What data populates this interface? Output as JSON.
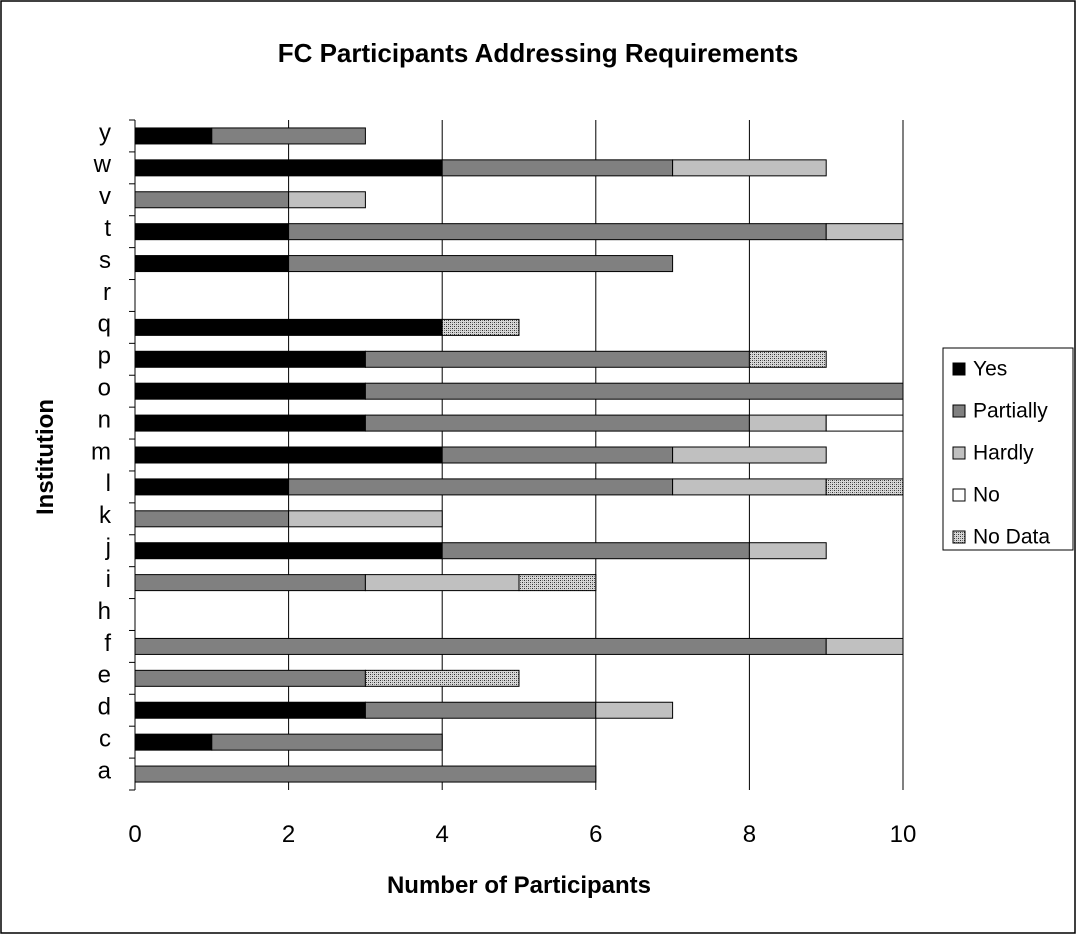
{
  "chart_data": {
    "type": "bar",
    "orientation": "horizontal",
    "stacked": true,
    "title": "FC Participants Addressing Requirements",
    "xlabel": "Number of Participants",
    "ylabel": "Institution",
    "xlim": [
      0,
      10
    ],
    "x_ticks": [
      "0",
      "2",
      "4",
      "6",
      "8",
      "10"
    ],
    "grid": "vertical",
    "legend_position": "right",
    "categories": [
      "y",
      "w",
      "v",
      "t",
      "s",
      "r",
      "q",
      "p",
      "o",
      "n",
      "m",
      "l",
      "k",
      "j",
      "i",
      "h",
      "f",
      "e",
      "d",
      "c",
      "a"
    ],
    "series": [
      {
        "name": "Yes",
        "color": "#000000",
        "pattern": "solid",
        "values": [
          1,
          4,
          0,
          2,
          2,
          0,
          4,
          3,
          3,
          3,
          4,
          2,
          0,
          4,
          0,
          0,
          0,
          0,
          3,
          1,
          0
        ]
      },
      {
        "name": "Partially",
        "color": "#808080",
        "pattern": "solid",
        "values": [
          2,
          3,
          2,
          7,
          5,
          0,
          0,
          5,
          7,
          5,
          3,
          5,
          2,
          4,
          3,
          0,
          9,
          3,
          3,
          3,
          6
        ]
      },
      {
        "name": "Hardly",
        "color": "#c0c0c0",
        "pattern": "solid",
        "values": [
          0,
          2,
          1,
          1,
          0,
          0,
          0,
          0,
          0,
          1,
          2,
          2,
          2,
          1,
          2,
          0,
          1,
          0,
          1,
          0,
          0
        ]
      },
      {
        "name": "No",
        "color": "#ffffff",
        "pattern": "solid",
        "values": [
          0,
          0,
          0,
          0,
          0,
          0,
          0,
          0,
          0,
          1,
          0,
          0,
          0,
          0,
          0,
          0,
          0,
          0,
          0,
          0,
          0
        ]
      },
      {
        "name": "No Data",
        "color": "#bdbdbd",
        "pattern": "dotted",
        "values": [
          0,
          0,
          0,
          0,
          0,
          0,
          1,
          1,
          0,
          0,
          0,
          1,
          0,
          0,
          1,
          0,
          0,
          2,
          0,
          0,
          0
        ]
      }
    ]
  }
}
